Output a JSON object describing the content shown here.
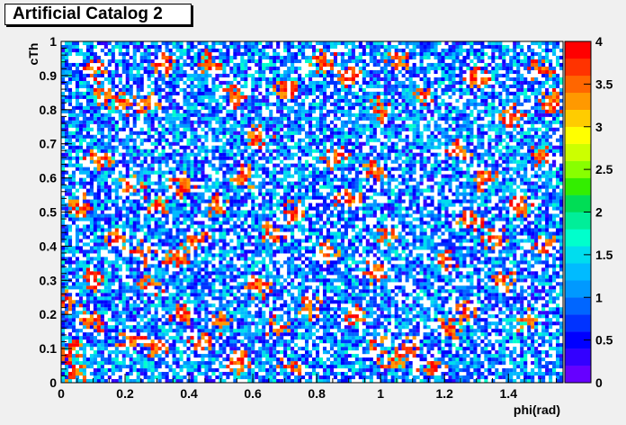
{
  "chart_data": {
    "type": "heatmap",
    "title": "Artificial Catalog 2",
    "xlabel": "phi(rad)",
    "ylabel": "cTh",
    "xlim": [
      0,
      1.571
    ],
    "ylim": [
      0,
      1
    ],
    "x_ticks": [
      "0",
      "0.2",
      "0.4",
      "0.6",
      "0.8",
      "1",
      "1.2",
      "1.4"
    ],
    "x_tick_values": [
      0,
      0.2,
      0.4,
      0.6,
      0.8,
      1.0,
      1.2,
      1.4
    ],
    "y_ticks": [
      "0",
      "0.1",
      "0.2",
      "0.3",
      "0.4",
      "0.5",
      "0.6",
      "0.7",
      "0.8",
      "0.9",
      "1"
    ],
    "y_tick_values": [
      0,
      0.1,
      0.2,
      0.3,
      0.4,
      0.5,
      0.6,
      0.7,
      0.8,
      0.9,
      1.0
    ],
    "zlim": [
      0,
      4
    ],
    "z_ticks": [
      "0",
      "0.5",
      "1",
      "1.5",
      "2",
      "2.5",
      "3",
      "3.5",
      "4"
    ],
    "z_tick_values": [
      0,
      0.5,
      1,
      1.5,
      2,
      2.5,
      3,
      3.5,
      4
    ],
    "palette": [
      "#6600ff",
      "#3300ff",
      "#0000ff",
      "#0033ff",
      "#0066ff",
      "#0099ff",
      "#00bbff",
      "#00ddee",
      "#00ffcc",
      "#00ee99",
      "#00dd55",
      "#33ee00",
      "#88ff00",
      "#ccff00",
      "#ffff00",
      "#ffcc00",
      "#ff9900",
      "#ff6600",
      "#ff3300",
      "#ff0000"
    ],
    "grid": false,
    "legend": "color-bar-right",
    "clusters": [
      [
        0.04,
        0.02
      ],
      [
        0.02,
        0.24
      ],
      [
        0.03,
        0.09
      ],
      [
        0.1,
        0.18
      ],
      [
        0.13,
        0.84
      ],
      [
        0.1,
        0.92
      ],
      [
        0.2,
        0.82
      ],
      [
        0.28,
        0.82
      ],
      [
        0.32,
        0.93
      ],
      [
        0.22,
        0.58
      ],
      [
        0.3,
        0.52
      ],
      [
        0.18,
        0.42
      ],
      [
        0.26,
        0.38
      ],
      [
        0.36,
        0.36
      ],
      [
        0.42,
        0.42
      ],
      [
        0.48,
        0.52
      ],
      [
        0.38,
        0.58
      ],
      [
        0.28,
        0.28
      ],
      [
        0.38,
        0.2
      ],
      [
        0.3,
        0.1
      ],
      [
        0.22,
        0.12
      ],
      [
        0.44,
        0.12
      ],
      [
        0.5,
        0.18
      ],
      [
        0.56,
        0.06
      ],
      [
        0.72,
        0.04
      ],
      [
        0.68,
        0.16
      ],
      [
        0.62,
        0.28
      ],
      [
        0.66,
        0.44
      ],
      [
        0.58,
        0.6
      ],
      [
        0.62,
        0.72
      ],
      [
        0.7,
        0.86
      ],
      [
        0.82,
        0.94
      ],
      [
        0.9,
        0.9
      ],
      [
        0.86,
        0.66
      ],
      [
        0.9,
        0.54
      ],
      [
        0.84,
        0.38
      ],
      [
        0.98,
        0.32
      ],
      [
        1.0,
        0.12
      ],
      [
        1.04,
        0.06
      ],
      [
        1.1,
        0.1
      ],
      [
        1.16,
        0.04
      ],
      [
        1.22,
        0.16
      ],
      [
        1.26,
        0.22
      ],
      [
        1.2,
        0.36
      ],
      [
        1.28,
        0.48
      ],
      [
        1.32,
        0.6
      ],
      [
        1.24,
        0.68
      ],
      [
        1.14,
        0.84
      ],
      [
        1.06,
        0.94
      ],
      [
        1.0,
        0.8
      ],
      [
        0.98,
        0.62
      ],
      [
        1.02,
        0.44
      ],
      [
        1.38,
        0.3
      ],
      [
        1.46,
        0.18
      ],
      [
        1.52,
        0.4
      ],
      [
        1.44,
        0.52
      ],
      [
        1.5,
        0.66
      ],
      [
        1.42,
        0.78
      ],
      [
        1.54,
        0.82
      ],
      [
        1.5,
        0.92
      ],
      [
        0.46,
        0.94
      ],
      [
        0.54,
        0.84
      ],
      [
        0.12,
        0.66
      ],
      [
        0.06,
        0.52
      ],
      [
        0.1,
        0.3
      ],
      [
        0.78,
        0.22
      ],
      [
        0.92,
        0.2
      ],
      [
        1.3,
        0.9
      ],
      [
        1.36,
        0.42
      ],
      [
        0.74,
        0.5
      ]
    ]
  }
}
